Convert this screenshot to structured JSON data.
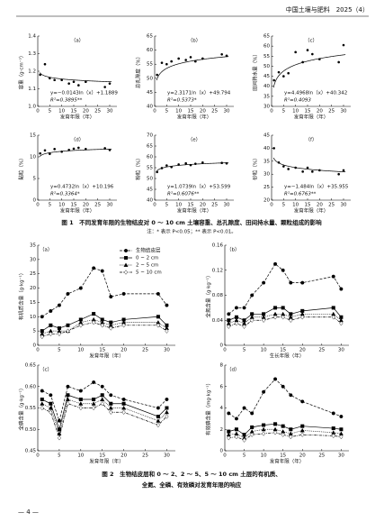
{
  "header": {
    "journal": "中国土壤与肥料　2025（4）"
  },
  "figure1": {
    "caption": "图 1　不同发育年限的生物结皮对 0 ～ 10 cm 土壤容重、总孔隙度、田间持水量、颗粒组成的影响",
    "note": "注：* 表示 P<0.05；** 表示 P<0.01。"
  },
  "figure2": {
    "caption": [
      "图 2　生物结皮层和 0 ～ 2、2 ～ 5、5 ～ 10 cm 土层的有机质、",
      "全氮、全磷、有效磷对发育年限的响应"
    ]
  },
  "page_number": "— 4 —",
  "chart_data": [
    {
      "type": "scatter",
      "panel": "（a）",
      "y_label": "容重（g·cm⁻³）",
      "x_label": "发育年限（年）",
      "x": [
        1,
        3,
        5,
        7,
        10,
        13,
        15,
        17,
        20,
        28,
        30
      ],
      "values": [
        1.18,
        1.24,
        1.16,
        1.15,
        1.15,
        1.13,
        1.14,
        1.12,
        1.14,
        1.11,
        1.13
      ],
      "equation": "y=−0.0143ln（x）+1.1889",
      "r2": "R²=0.3895**",
      "xlim": [
        0,
        33
      ],
      "xticks": [
        0,
        5,
        10,
        15,
        20,
        25,
        30
      ],
      "ylim": [
        1.0,
        1.4
      ],
      "yticks": [
        {
          "value": 1.0,
          "label": "1.0"
        },
        1.1,
        1.2,
        1.3,
        1.4
      ],
      "color": "#000000"
    },
    {
      "type": "scatter",
      "panel": "（b）",
      "y_label": "总孔隙度（%）",
      "x_label": "发育年限（年）",
      "x": [
        1,
        3,
        5,
        7,
        10,
        13,
        15,
        17,
        20,
        28,
        30
      ],
      "values": [
        51.2,
        55.5,
        55.0,
        56.0,
        57.0,
        56.5,
        57.5,
        56.0,
        57.0,
        58.5,
        58.0
      ],
      "equation": "y=2.3171ln（x）+49.794",
      "r2": "R²=0.5373*",
      "xlim": [
        0,
        33
      ],
      "xticks": [
        0,
        5,
        10,
        15,
        20,
        25,
        30
      ],
      "ylim": [
        40,
        65
      ],
      "yticks": [
        40,
        45,
        50,
        55,
        60,
        65
      ],
      "color": "#000000"
    },
    {
      "type": "scatter",
      "panel": "（c）",
      "y_label": "田间持水量（%）",
      "x_label": "发育年限（年）",
      "x": [
        1,
        3,
        5,
        7,
        10,
        13,
        15,
        17,
        20,
        28,
        30
      ],
      "values": [
        43.0,
        47.0,
        45.0,
        46.5,
        57.0,
        52.0,
        58.0,
        56.0,
        53.5,
        52.0,
        60.5
      ],
      "equation": "y=4.4968ln（x）+40.342",
      "r2": "R²=0.4093",
      "xlim": [
        0,
        33
      ],
      "xticks": [
        0,
        5,
        10,
        15,
        20,
        25,
        30
      ],
      "ylim": [
        30,
        65
      ],
      "yticks": [
        30,
        35,
        40,
        45,
        50,
        55,
        60,
        65
      ],
      "color": "#000000"
    },
    {
      "type": "scatter",
      "panel": "（d）",
      "y_label": "黏粒（%）",
      "x_label": "发育年限（年）",
      "x": [
        1,
        3,
        5,
        7,
        10,
        13,
        15,
        17,
        20,
        28,
        30
      ],
      "values": [
        10.8,
        11.5,
        10.7,
        11.8,
        11.2,
        11.6,
        11.9,
        12.1,
        11.8,
        12.0,
        11.6
      ],
      "equation": "y=0.4732ln（x）+10.196",
      "r2": "R²=0.3364*",
      "xlim": [
        0,
        33
      ],
      "xticks": [
        0,
        5,
        10,
        15,
        20,
        25,
        30
      ],
      "ylim": [
        0,
        15
      ],
      "yticks": [
        0,
        5,
        10,
        15
      ],
      "color": "#000000"
    },
    {
      "type": "scatter",
      "panel": "（e）",
      "y_label": "粉粒（%）",
      "x_label": "发育年限（年）",
      "x": [
        1,
        3,
        5,
        7,
        10,
        13,
        15,
        17,
        20,
        28,
        30
      ],
      "values": [
        53.0,
        54.8,
        56.0,
        55.3,
        56.5,
        57.0,
        56.2,
        56.8,
        57.4,
        57.2,
        57.0
      ],
      "equation": "y=1.0739ln（x）+53.599",
      "r2": "R²=0.6076**",
      "xlim": [
        0,
        33
      ],
      "xticks": [
        0,
        5,
        10,
        15,
        20,
        25,
        30
      ],
      "ylim": [
        40,
        70
      ],
      "yticks": [
        40,
        45,
        50,
        55,
        60,
        65,
        70
      ],
      "color": "#000000"
    },
    {
      "type": "scatter",
      "panel": "（f）",
      "y_label": "砂粒（%）",
      "x_label": "发育年限（年）",
      "x": [
        1,
        3,
        5,
        7,
        10,
        13,
        15,
        17,
        20,
        28,
        30
      ],
      "values": [
        40.0,
        34.5,
        33.0,
        32.0,
        32.5,
        31.0,
        32.5,
        31.0,
        31.5,
        30.0,
        31.5
      ],
      "equation": "y=−1.484ln（x）+35.955",
      "r2": "R²=0.6763**",
      "xlim": [
        0,
        33
      ],
      "xticks": [
        0,
        5,
        10,
        15,
        20,
        25,
        30
      ],
      "ylim": [
        20,
        45
      ],
      "yticks": [
        20,
        25,
        30,
        35,
        40,
        45
      ],
      "color": "#000000"
    },
    {
      "type": "line",
      "panel": "（a）",
      "y_label": "有机质含量（g·kg⁻¹）",
      "x_label": "发育年限（年）",
      "legend": "top-right",
      "x": [
        1,
        3,
        5,
        7,
        10,
        13,
        15,
        17,
        20,
        28,
        30
      ],
      "xlim": [
        0,
        32
      ],
      "xticks": [
        0,
        5,
        10,
        15,
        20,
        25,
        30
      ],
      "ylim": [
        0,
        35
      ],
      "yticks": [
        0,
        5,
        10,
        15,
        20,
        25,
        30,
        35
      ],
      "series": [
        {
          "name": "生物结皮层",
          "color": "#000000",
          "line_style": "dashed",
          "marker": "circle",
          "values": [
            10,
            12,
            14,
            18,
            20,
            27,
            26,
            17,
            18,
            18,
            14
          ]
        },
        {
          "name": "0 ~ 2 cm",
          "color": "#000000",
          "line_style": "solid",
          "marker": "square",
          "values": [
            5,
            7,
            6,
            7,
            9,
            11,
            9,
            8,
            9,
            10,
            7
          ]
        },
        {
          "name": "2 ~ 5 cm",
          "color": "#000000",
          "line_style": "dotted",
          "marker": "triangle",
          "values": [
            4,
            5,
            5,
            5,
            8,
            9,
            8,
            7,
            8,
            8,
            6
          ]
        },
        {
          "name": "5 ~ 10 cm",
          "color": "#000000",
          "line_style": "dash-dot",
          "marker": "diamond",
          "values": [
            3,
            4,
            4,
            5,
            7,
            8,
            7,
            6,
            7,
            7,
            5
          ]
        }
      ]
    },
    {
      "type": "line",
      "panel": "（b）",
      "y_label": "全氮含量（g·kg⁻¹）",
      "x_label": "生长年限（年）",
      "x": [
        1,
        3,
        5,
        7,
        10,
        13,
        15,
        17,
        20,
        28,
        30
      ],
      "xlim": [
        0,
        32
      ],
      "xticks": [
        0,
        5,
        10,
        15,
        20,
        25,
        30
      ],
      "ylim": [
        0,
        0.16
      ],
      "yticks": [
        0,
        0.04,
        0.08,
        0.12,
        0.16
      ],
      "series": [
        {
          "name": "生物结皮层",
          "color": "#000000",
          "line_style": "dashed",
          "marker": "circle",
          "values": [
            0.05,
            0.06,
            0.06,
            0.08,
            0.1,
            0.13,
            0.12,
            0.1,
            0.1,
            0.11,
            0.09
          ]
        },
        {
          "name": "0 ~ 2 cm",
          "color": "#000000",
          "line_style": "solid",
          "marker": "square",
          "values": [
            0.04,
            0.045,
            0.04,
            0.05,
            0.05,
            0.06,
            0.06,
            0.05,
            0.055,
            0.06,
            0.045
          ]
        },
        {
          "name": "2 ~ 5 cm",
          "color": "#000000",
          "line_style": "dotted",
          "marker": "triangle",
          "values": [
            0.035,
            0.04,
            0.035,
            0.045,
            0.045,
            0.05,
            0.05,
            0.045,
            0.05,
            0.05,
            0.04
          ]
        },
        {
          "name": "5 ~ 10 cm",
          "color": "#000000",
          "line_style": "dash-dot",
          "marker": "diamond",
          "values": [
            0.03,
            0.035,
            0.03,
            0.04,
            0.04,
            0.045,
            0.045,
            0.04,
            0.045,
            0.045,
            0.035
          ]
        }
      ]
    },
    {
      "type": "line",
      "panel": "（c）",
      "y_label": "全磷含量（g·kg⁻¹）",
      "x_label": "发育年限（年）",
      "x": [
        1,
        3,
        5,
        7,
        10,
        13,
        15,
        17,
        20,
        28,
        30
      ],
      "xlim": [
        0,
        32
      ],
      "xticks": [
        0,
        5,
        10,
        15,
        20,
        25,
        30
      ],
      "ylim": [
        0.45,
        0.65
      ],
      "yticks": [
        0.45,
        {
          "value": 0.5,
          "label": "0.50"
        },
        0.55,
        {
          "value": 0.6,
          "label": "0.60"
        },
        0.65
      ],
      "series": [
        {
          "name": "生物结皮层",
          "color": "#000000",
          "line_style": "dashed",
          "marker": "circle",
          "values": [
            0.59,
            0.58,
            0.52,
            0.6,
            0.59,
            0.61,
            0.6,
            0.58,
            0.57,
            0.55,
            0.57
          ]
        },
        {
          "name": "0 ~ 2 cm",
          "color": "#000000",
          "line_style": "solid",
          "marker": "square",
          "values": [
            0.57,
            0.56,
            0.5,
            0.58,
            0.57,
            0.57,
            0.58,
            0.56,
            0.56,
            0.53,
            0.55
          ]
        },
        {
          "name": "2 ~ 5 cm",
          "color": "#000000",
          "line_style": "dotted",
          "marker": "triangle",
          "values": [
            0.56,
            0.55,
            0.49,
            0.57,
            0.56,
            0.56,
            0.57,
            0.55,
            0.55,
            0.52,
            0.54
          ]
        },
        {
          "name": "5 ~ 10 cm",
          "color": "#000000",
          "line_style": "dash-dot",
          "marker": "diamond",
          "values": [
            0.55,
            0.54,
            0.48,
            0.56,
            0.55,
            0.55,
            0.56,
            0.54,
            0.54,
            0.51,
            0.53
          ]
        }
      ]
    },
    {
      "type": "line",
      "panel": "（d）",
      "y_label": "有效磷含量（mg·kg⁻¹）",
      "x_label": "发育年限（年）",
      "x": [
        1,
        3,
        5,
        7,
        10,
        13,
        15,
        17,
        20,
        28,
        30
      ],
      "xlim": [
        0,
        32
      ],
      "xticks": [
        0,
        5,
        10,
        15,
        20,
        25,
        30
      ],
      "ylim": [
        0,
        8
      ],
      "yticks": [
        0,
        2,
        4,
        6,
        8
      ],
      "series": [
        {
          "name": "生物结皮层",
          "color": "#000000",
          "line_style": "dashed",
          "marker": "circle",
          "values": [
            3.5,
            3,
            4,
            3.5,
            5.5,
            6.7,
            6,
            5.2,
            4.6,
            3.5,
            3.2
          ]
        },
        {
          "name": "0 ~ 2 cm",
          "color": "#000000",
          "line_style": "solid",
          "marker": "square",
          "values": [
            1.8,
            2,
            1.5,
            2.2,
            2.4,
            2.5,
            2.3,
            2,
            2.3,
            2.1,
            2
          ]
        },
        {
          "name": "2 ~ 5 cm",
          "color": "#000000",
          "line_style": "dotted",
          "marker": "triangle",
          "values": [
            1.5,
            1.6,
            1.2,
            1.8,
            2,
            2,
            1.8,
            1.6,
            1.9,
            1.7,
            1.6
          ]
        },
        {
          "name": "5 ~ 10 cm",
          "color": "#000000",
          "line_style": "dash-dot",
          "marker": "diamond",
          "values": [
            1.2,
            1.3,
            1,
            1.5,
            1.6,
            1.7,
            1.5,
            1.3,
            1.5,
            1.4,
            1.3
          ]
        }
      ]
    }
  ]
}
